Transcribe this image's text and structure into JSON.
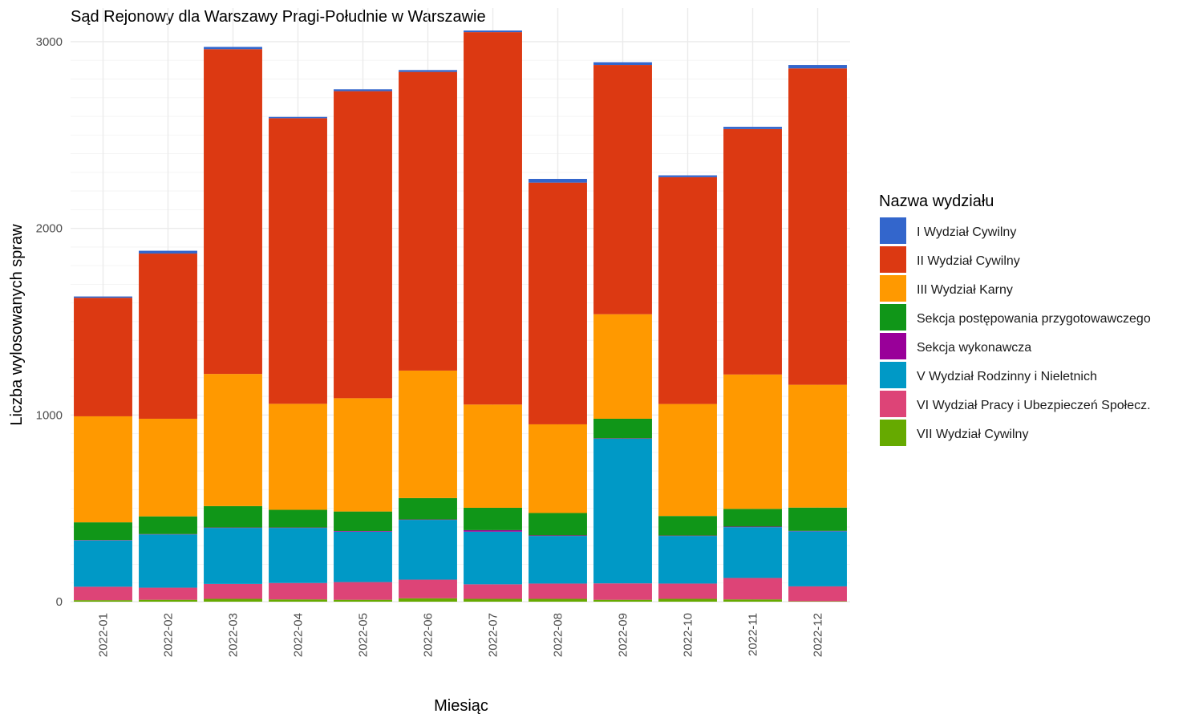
{
  "chart_data": {
    "type": "bar",
    "stacked": true,
    "title": "Sąd Rejonowy dla Warszawy Pragi-Południe w Warszawie",
    "xlabel": "Miesiąc",
    "ylabel": "Liczba wylosowanych spraw",
    "ylim": [
      0,
      3060
    ],
    "y_ticks": [
      0,
      1000,
      2000,
      3000
    ],
    "grid": true,
    "legend_title": "Nazwa wydziału",
    "legend_position": "right",
    "categories": [
      "2022-01",
      "2022-02",
      "2022-03",
      "2022-04",
      "2022-05",
      "2022-06",
      "2022-07",
      "2022-08",
      "2022-09",
      "2022-10",
      "2022-11",
      "2022-12"
    ],
    "series": [
      {
        "name": "VII Wydział Cywilny",
        "color": "#66aa00",
        "values": [
          8,
          10,
          15,
          12,
          10,
          18,
          15,
          15,
          10,
          15,
          12,
          2
        ]
      },
      {
        "name": "VI Wydział Pracy i Ubezpieczeń Społecz.",
        "color": "#dd4477",
        "values": [
          72,
          65,
          80,
          88,
          95,
          100,
          78,
          82,
          88,
          82,
          115,
          80
        ]
      },
      {
        "name": "V Wydział Rodzinny i Nieletnich",
        "color": "#0099c6",
        "values": [
          248,
          285,
          300,
          295,
          270,
          320,
          282,
          255,
          775,
          255,
          272,
          295
        ]
      },
      {
        "name": "Sekcja wykonawcza",
        "color": "#990099",
        "values": [
          2,
          2,
          2,
          2,
          3,
          2,
          8,
          3,
          2,
          2,
          3,
          2
        ]
      },
      {
        "name": "Sekcja postępowania przygotowawczego",
        "color": "#109618",
        "values": [
          95,
          95,
          115,
          95,
          105,
          115,
          120,
          120,
          105,
          105,
          95,
          125
        ]
      },
      {
        "name": "III Wydział Karny",
        "color": "#ff9900",
        "values": [
          568,
          523,
          708,
          568,
          607,
          683,
          553,
          475,
          560,
          600,
          720,
          658
        ]
      },
      {
        "name": "II Wydział Cywilny",
        "color": "#dc3912",
        "values": [
          635,
          885,
          1740,
          1530,
          1645,
          1600,
          1995,
          1295,
          1335,
          1215,
          1315,
          1695
        ]
      },
      {
        "name": "I Wydział Cywilny",
        "color": "#3366cc",
        "values": [
          7,
          15,
          12,
          7,
          10,
          10,
          9,
          20,
          15,
          10,
          12,
          18
        ]
      }
    ],
    "legend_order": [
      "I Wydział Cywilny",
      "II Wydział Cywilny",
      "III Wydział Karny",
      "Sekcja postępowania przygotowawczego",
      "Sekcja wykonawcza",
      "V Wydział Rodzinny i Nieletnich",
      "VI Wydział Pracy i Ubezpieczeń Społecz.",
      "VII Wydział Cywilny"
    ]
  }
}
